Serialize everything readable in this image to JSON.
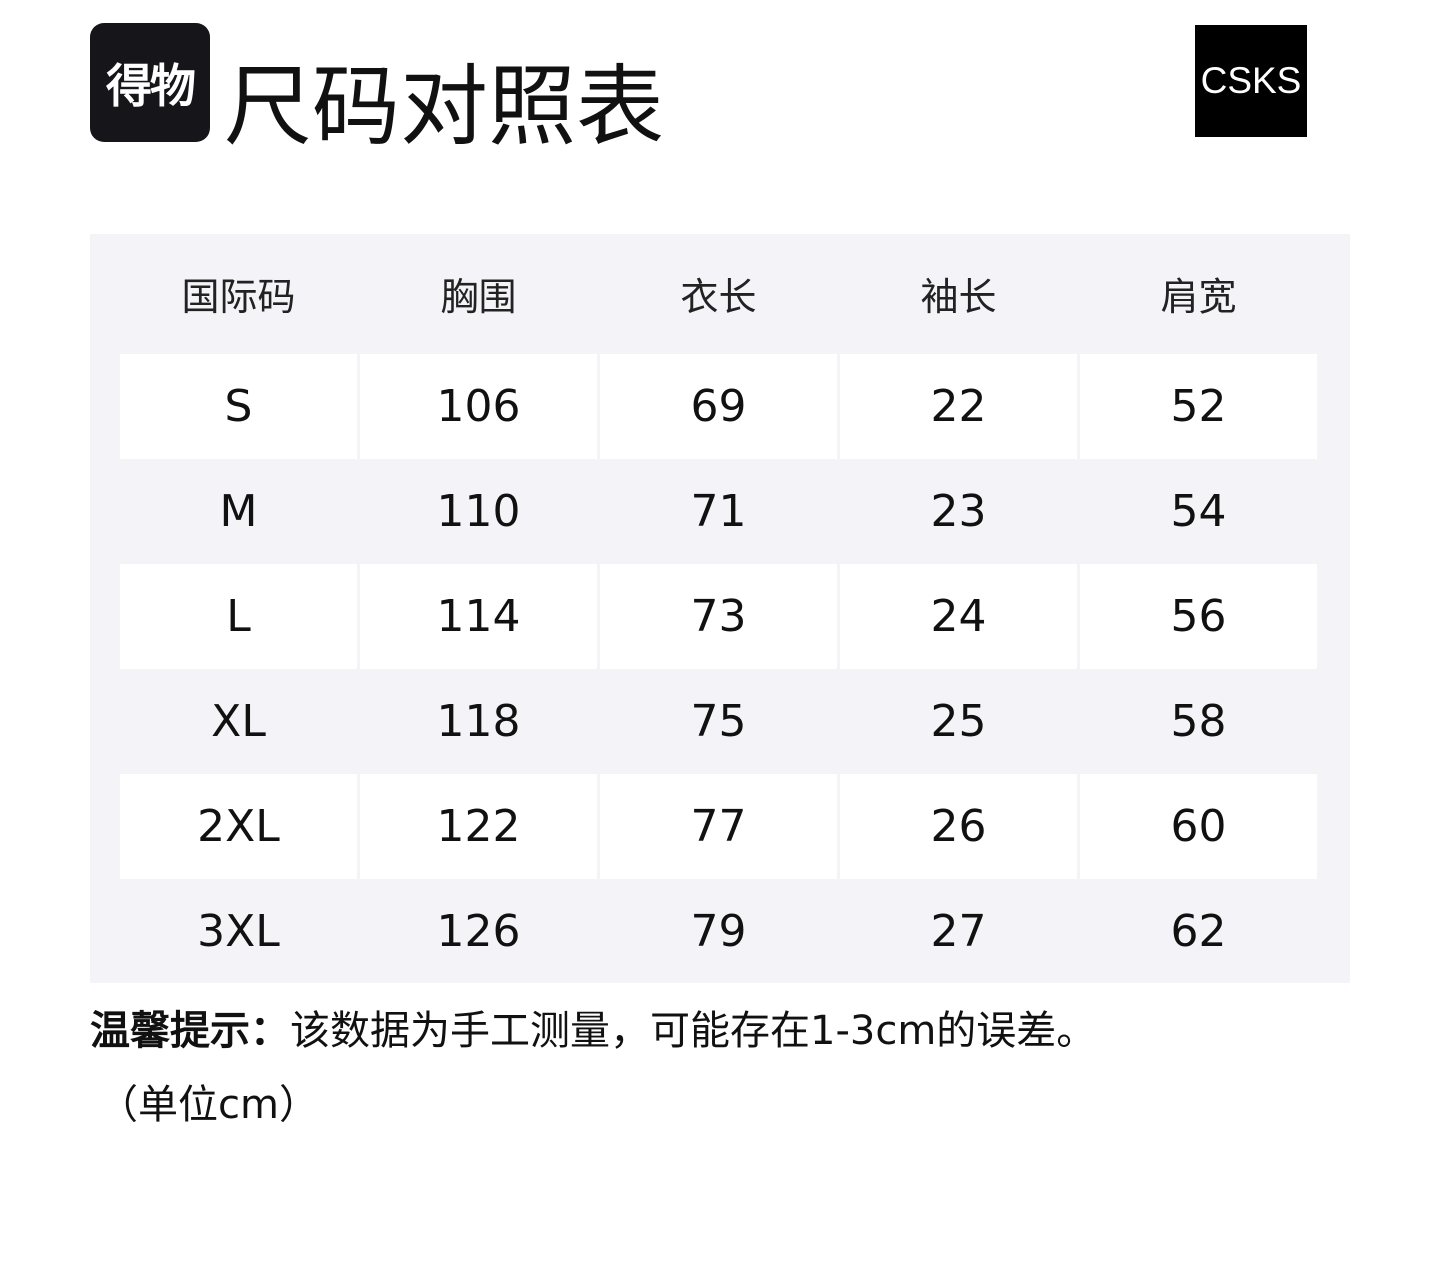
{
  "logo_text": "得物",
  "title": "尺码对照表",
  "brand": "CSKS",
  "table": {
    "headers": [
      "国际码",
      "胸围",
      "衣长",
      "袖长",
      "肩宽"
    ],
    "rows": [
      [
        "S",
        "106",
        "69",
        "22",
        "52"
      ],
      [
        "M",
        "110",
        "71",
        "23",
        "54"
      ],
      [
        "L",
        "114",
        "73",
        "24",
        "56"
      ],
      [
        "XL",
        "118",
        "75",
        "25",
        "58"
      ],
      [
        "2XL",
        "122",
        "77",
        "26",
        "60"
      ],
      [
        "3XL",
        "126",
        "79",
        "27",
        "62"
      ]
    ]
  },
  "note": {
    "label": "温馨提示：",
    "text": "该数据为手工测量，可能存在1-3cm的误差。",
    "unit": "（单位cm）"
  }
}
